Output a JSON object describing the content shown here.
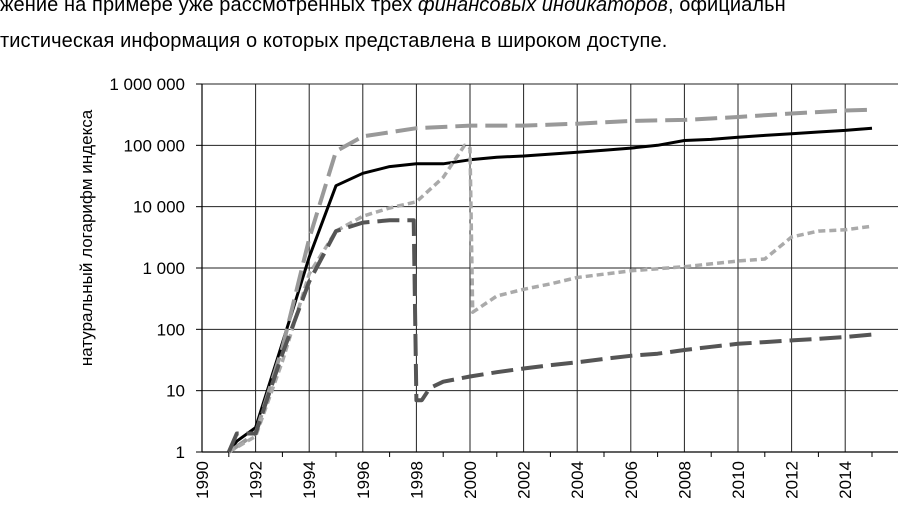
{
  "paragraph": {
    "line1_before": "жение на примере уже рассмотренных трех ",
    "line1_italic": "финансовых индикаторов",
    "line1_after": ", официальн",
    "line2": "тистическая информация о которых представлена в широком доступе."
  },
  "chart_data": {
    "type": "line",
    "title": "",
    "xlabel": "",
    "ylabel": "натуральный логарифм индекса",
    "xlim": [
      1990,
      2015.5
    ],
    "ylim": [
      1,
      1000000
    ],
    "yscale": "log",
    "grid": true,
    "legend": "none",
    "x_ticks": [
      "1990",
      "1992",
      "1994",
      "1996",
      "1998",
      "2000",
      "2002",
      "2004",
      "2006",
      "2008",
      "2010",
      "2012",
      "2014"
    ],
    "y_ticks": [
      {
        "value": 1,
        "label": "1"
      },
      {
        "value": 10,
        "label": "10"
      },
      {
        "value": 100,
        "label": "100"
      },
      {
        "value": 1000,
        "label": "1 000"
      },
      {
        "value": 10000,
        "label": "10 000"
      },
      {
        "value": 100000,
        "label": "100 000"
      },
      {
        "value": 1000000,
        "label": "1 000 000"
      }
    ],
    "series": [
      {
        "style": "solid",
        "color": "#000000",
        "points": [
          [
            1991.0,
            1
          ],
          [
            1991.3,
            1.5
          ],
          [
            1992.0,
            2.5
          ],
          [
            1993.0,
            60
          ],
          [
            1994.0,
            1500
          ],
          [
            1995.0,
            22000
          ],
          [
            1996.0,
            35000
          ],
          [
            1997.0,
            45000
          ],
          [
            1998.0,
            50000
          ],
          [
            1999.0,
            50000
          ],
          [
            2000.0,
            58000
          ],
          [
            2001.0,
            64000
          ],
          [
            2002.0,
            67000
          ],
          [
            2003.0,
            72000
          ],
          [
            2004.0,
            77000
          ],
          [
            2005.0,
            83000
          ],
          [
            2006.0,
            90000
          ],
          [
            2007.0,
            100000
          ],
          [
            2008.0,
            120000
          ],
          [
            2009.0,
            125000
          ],
          [
            2010.0,
            135000
          ],
          [
            2011.0,
            145000
          ],
          [
            2012.0,
            155000
          ],
          [
            2013.0,
            165000
          ],
          [
            2014.0,
            175000
          ],
          [
            2015.0,
            190000
          ]
        ]
      },
      {
        "style": "dashed",
        "color": "#999999",
        "points": [
          [
            1991.0,
            1
          ],
          [
            1992.0,
            2
          ],
          [
            1993.0,
            50
          ],
          [
            1994.0,
            3000
          ],
          [
            1995.0,
            80000
          ],
          [
            1996.0,
            140000
          ],
          [
            1998.0,
            190000
          ],
          [
            2000.0,
            210000
          ],
          [
            2002.0,
            210000
          ],
          [
            2004.0,
            225000
          ],
          [
            2006.0,
            250000
          ],
          [
            2008.0,
            260000
          ],
          [
            2010.0,
            290000
          ],
          [
            2012.0,
            330000
          ],
          [
            2014.0,
            370000
          ],
          [
            2015.0,
            380000
          ]
        ]
      },
      {
        "style": "dotted",
        "color": "#aaaaaa",
        "points": [
          [
            1991.0,
            1
          ],
          [
            1992.0,
            1.8
          ],
          [
            1993.0,
            30
          ],
          [
            1994.0,
            800
          ],
          [
            1995.0,
            4000
          ],
          [
            1996.0,
            7000
          ],
          [
            1997.0,
            9500
          ],
          [
            1998.0,
            12000
          ],
          [
            1999.0,
            30000
          ],
          [
            1999.8,
            100000
          ],
          [
            2000.0,
            90000
          ],
          [
            2000.1,
            190
          ],
          [
            2001.0,
            350
          ],
          [
            2002.0,
            450
          ],
          [
            2003.0,
            550
          ],
          [
            2004.0,
            700
          ],
          [
            2006.0,
            900
          ],
          [
            2008.0,
            1050
          ],
          [
            2010.0,
            1300
          ],
          [
            2011.0,
            1400
          ],
          [
            2012.0,
            3200
          ],
          [
            2013.0,
            4000
          ],
          [
            2014.0,
            4200
          ],
          [
            2015.0,
            4800
          ]
        ]
      },
      {
        "style": "dashed",
        "color": "#555555",
        "points": [
          [
            1991.0,
            1
          ],
          [
            1991.3,
            2
          ],
          [
            1992.0,
            2
          ],
          [
            1993.0,
            40
          ],
          [
            1994.0,
            600
          ],
          [
            1995.0,
            4000
          ],
          [
            1996.0,
            5500
          ],
          [
            1997.0,
            6000
          ],
          [
            1997.9,
            6000
          ],
          [
            1998.0,
            7
          ],
          [
            1998.2,
            7
          ],
          [
            1998.5,
            11
          ],
          [
            1999.0,
            14
          ],
          [
            2000.0,
            17
          ],
          [
            2001.0,
            20
          ],
          [
            2002.0,
            23
          ],
          [
            2003.0,
            26
          ],
          [
            2004.0,
            29
          ],
          [
            2005.0,
            33
          ],
          [
            2006.0,
            37
          ],
          [
            2007.0,
            40
          ],
          [
            2008.0,
            46
          ],
          [
            2009.0,
            52
          ],
          [
            2010.0,
            58
          ],
          [
            2011.0,
            62
          ],
          [
            2012.0,
            66
          ],
          [
            2013.0,
            70
          ],
          [
            2014.0,
            75
          ],
          [
            2015.0,
            82
          ]
        ]
      }
    ]
  }
}
